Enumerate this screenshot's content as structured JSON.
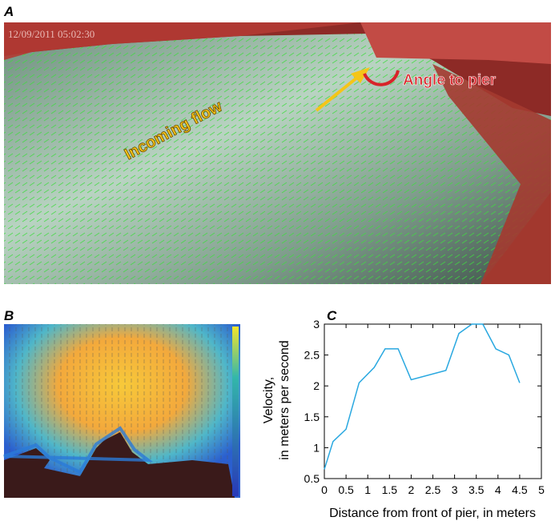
{
  "figure": {
    "panel_a": {
      "label": "A",
      "timestamp": "12/09/2011 05:02:30",
      "flow_label": "Incoming flow",
      "angle_label": "Angle to pier"
    },
    "panel_b": {
      "label": "B"
    }
  },
  "chart_data": {
    "type": "line",
    "panel_label": "C",
    "x_label": "Distance from front of pier, in meters",
    "y_label": [
      "Velocity,",
      "in meters per second"
    ],
    "x": [
      0,
      0.2,
      0.5,
      0.8,
      1.15,
      1.4,
      1.7,
      2.0,
      2.8,
      3.1,
      3.4,
      3.65,
      3.95,
      4.25,
      4.5
    ],
    "series": [
      {
        "color": "#29a8e0",
        "values": [
          0.65,
          1.1,
          1.3,
          2.05,
          2.3,
          2.6,
          2.6,
          2.1,
          2.25,
          2.85,
          3.0,
          3.0,
          2.6,
          2.5,
          2.05
        ]
      }
    ],
    "xlim": [
      0,
      5
    ],
    "ylim": [
      0.5,
      3
    ],
    "xticks": [
      0,
      0.5,
      1,
      1.5,
      2,
      2.5,
      3,
      3.5,
      4,
      4.5,
      5
    ],
    "yticks": [
      0.5,
      1,
      1.5,
      2,
      2.5,
      3
    ]
  }
}
